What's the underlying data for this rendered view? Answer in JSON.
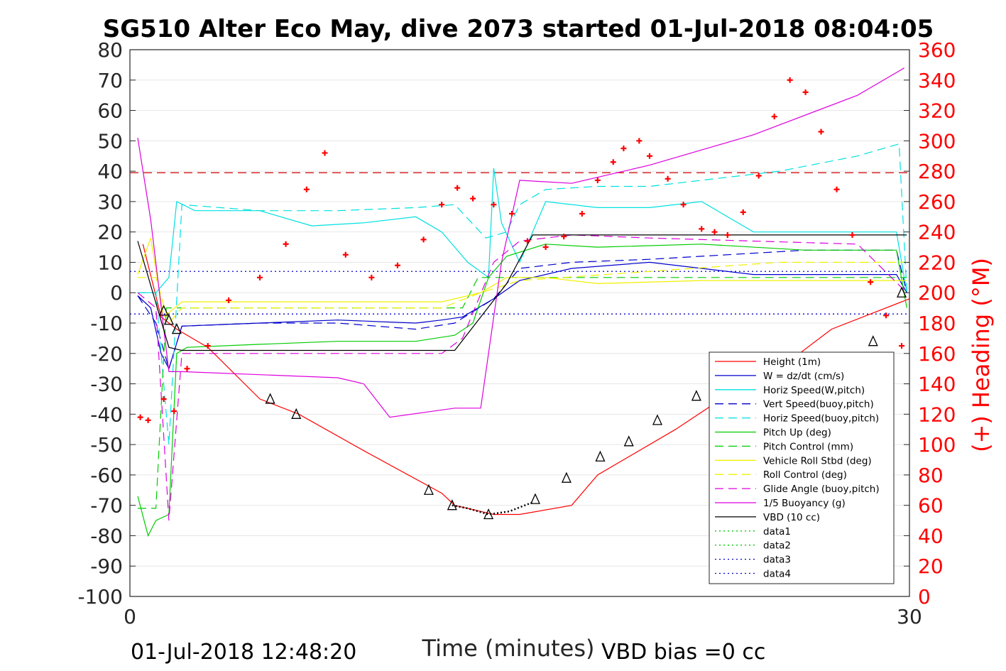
{
  "chart_data": {
    "type": "line",
    "title": "SG510 Alter Eco May, dive 2073 started 01-Jul-2018 08:04:05",
    "xlabel": "Time (minutes)",
    "ylabel_right": "(+) Heading (°M)",
    "footer_left": "01-Jul-2018 12:48:20",
    "footer_right": "VBD bias =0 cc",
    "xlim": [
      0,
      30
    ],
    "ylim": [
      -100,
      80
    ],
    "ylim_right": [
      0,
      360
    ],
    "x_ticks": [
      "0",
      "30"
    ],
    "y_ticks": [
      "80",
      "70",
      "60",
      "50",
      "40",
      "30",
      "20",
      "10",
      "0",
      "-10",
      "-20",
      "-30",
      "-40",
      "-50",
      "-60",
      "-70",
      "-80",
      "-90",
      "-100"
    ],
    "y_ticks_right": [
      "360",
      "340",
      "320",
      "300",
      "280",
      "260",
      "240",
      "220",
      "200",
      "180",
      "160",
      "140",
      "120",
      "100",
      "80",
      "60",
      "40",
      "20",
      "0"
    ],
    "grid": true,
    "legend_position": "bottom-right",
    "legend": [
      {
        "name": "Height (1m)",
        "color": "#ff0000",
        "style": "solid"
      },
      {
        "name": "W = dz/dt (cm/s)",
        "color": "#0000cc",
        "style": "solid"
      },
      {
        "name": "Horiz Speed(W,pitch)",
        "color": "#00e0e0",
        "style": "solid"
      },
      {
        "name": "Vert Speed(buoy,pitch)",
        "color": "#0000cc",
        "style": "dashed"
      },
      {
        "name": "Horiz Speed(buoy,pitch)",
        "color": "#00e0e0",
        "style": "dashed"
      },
      {
        "name": "Pitch Up (deg)",
        "color": "#00cc00",
        "style": "solid"
      },
      {
        "name": "Pitch Control (mm)",
        "color": "#00cc00",
        "style": "dashed"
      },
      {
        "name": "Vehicle Roll Stbd (deg)",
        "color": "#f0f000",
        "style": "solid"
      },
      {
        "name": "Roll Control (deg)",
        "color": "#f0f000",
        "style": "dashed"
      },
      {
        "name": "Glide Angle (buoy,pitch)",
        "color": "#dd00dd",
        "style": "dashed"
      },
      {
        "name": "1/5 Buoyancy (g)",
        "color": "#dd00dd",
        "style": "solid"
      },
      {
        "name": "VBD (10 cc)",
        "color": "#000000",
        "style": "solid"
      },
      {
        "name": "data1",
        "color": "#00cc00",
        "style": "dotted"
      },
      {
        "name": "data2",
        "color": "#00cc00",
        "style": "dotted"
      },
      {
        "name": "data3",
        "color": "#0000cc",
        "style": "dotted"
      },
      {
        "name": "data4",
        "color": "#0000cc",
        "style": "dotted"
      }
    ],
    "series": [
      {
        "name": "Height (1m)",
        "x": [
          0.5,
          1.2,
          1.8,
          3,
          5,
          6.5,
          9,
          12,
          12.5,
          14,
          15,
          17,
          18,
          21,
          24,
          25,
          27,
          30
        ],
        "y": [
          16,
          -8,
          -12,
          -18,
          -35,
          -40,
          -52,
          -66,
          -70,
          -73,
          -73,
          -70,
          -60,
          -45,
          -28,
          -25,
          -12,
          -2
        ]
      },
      {
        "name": "W = dz/dt (cm/s)",
        "x": [
          0.3,
          0.8,
          1.2,
          1.5,
          2,
          5,
          8,
          11,
          12,
          12.8,
          14,
          15,
          17,
          20,
          24,
          27,
          29.5,
          29.9
        ],
        "y": [
          -1,
          -5,
          -20,
          -25,
          -11,
          -10,
          -9,
          -10,
          -9,
          -8,
          -2,
          4,
          8,
          10,
          6,
          6,
          6,
          0
        ]
      },
      {
        "name": "Horiz Speed(W,pitch)",
        "x": [
          0.3,
          1,
          1.5,
          1.8,
          2.5,
          5,
          7,
          9,
          11,
          12,
          13,
          13.8,
          14,
          14.3,
          15,
          16,
          18,
          20,
          22,
          24,
          27,
          29.5,
          29.9
        ],
        "y": [
          0,
          0,
          5,
          30,
          27,
          27,
          22,
          23,
          25,
          20,
          10,
          5,
          41,
          23,
          10,
          30,
          28,
          28,
          30,
          20,
          20,
          20,
          0
        ]
      },
      {
        "name": "Vert Speed(buoy,pitch)",
        "x": [
          0.3,
          1,
          1.5,
          2,
          5,
          8,
          11,
          12.5,
          14,
          15,
          17,
          20,
          22,
          26,
          29.5,
          29.9
        ],
        "y": [
          -1,
          -10,
          -25,
          -11,
          -10,
          -10,
          -12,
          -10,
          -2,
          8,
          10,
          11,
          12,
          14,
          14,
          0
        ]
      },
      {
        "name": "Horiz Speed(buoy,pitch)",
        "x": [
          0.3,
          1,
          1.5,
          2,
          5,
          8,
          11,
          12.5,
          13.7,
          14.5,
          15,
          16,
          18,
          20,
          22,
          25,
          28,
          29.6,
          29.9
        ],
        "y": [
          0,
          0,
          -50,
          29,
          27,
          27,
          28,
          29,
          18,
          20,
          29,
          34,
          35,
          35,
          37,
          40,
          45,
          49,
          0
        ]
      },
      {
        "name": "Pitch Up (deg)",
        "x": [
          0.3,
          0.7,
          1,
          1.5,
          1.8,
          2.2,
          5,
          8,
          11,
          12.5,
          13.2,
          13.8,
          14.5,
          16,
          18,
          22,
          26,
          29.5,
          29.9
        ],
        "y": [
          -67,
          -80,
          -75,
          -73,
          -20,
          -18,
          -17,
          -16,
          -16,
          -14,
          -10,
          5,
          12,
          16,
          15,
          16,
          14,
          14,
          -5
        ]
      },
      {
        "name": "Pitch Control (mm)",
        "x": [
          0.3,
          1,
          1.4,
          1.8,
          12.8,
          13.4,
          29.9
        ],
        "y": [
          -71,
          -71,
          -5,
          -5,
          -5,
          5,
          5
        ]
      },
      {
        "name": "Vehicle Roll Stbd (deg)",
        "x": [
          0.3,
          0.8,
          1.3,
          2,
          5,
          8,
          12,
          13.5,
          14.5,
          16,
          18,
          22,
          25,
          29.9
        ],
        "y": [
          6,
          18,
          -8,
          -3,
          -3,
          -3,
          -3,
          0,
          5,
          5,
          3,
          4,
          4,
          4
        ]
      },
      {
        "name": "Roll Control (deg)",
        "x": [
          0.3,
          1,
          1.5,
          2,
          12,
          13.5,
          15,
          25,
          29.9
        ],
        "y": [
          5,
          5,
          -10,
          -5,
          -5,
          0,
          4,
          10,
          10
        ]
      },
      {
        "name": "Glide Angle (buoy,pitch)",
        "x": [
          0.3,
          1,
          1.5,
          2,
          5,
          8,
          12,
          12.8,
          14,
          15,
          17,
          20,
          24,
          28,
          29.9
        ],
        "y": [
          0,
          -5,
          -75,
          -20,
          -20,
          -20,
          -20,
          -15,
          10,
          17,
          19,
          18,
          17,
          16,
          0
        ]
      },
      {
        "name": "1/5 Buoyancy (g)",
        "x": [
          0.3,
          0.8,
          1.5,
          2,
          5,
          8,
          9,
          10,
          12.5,
          13.5,
          14.3,
          15,
          17,
          20,
          24,
          28,
          29.8
        ],
        "y": [
          51,
          24,
          -26,
          -26,
          -27,
          -28,
          -30,
          -41,
          -38,
          -38,
          10,
          37,
          36,
          42,
          52,
          65,
          74
        ]
      },
      {
        "name": "VBD (10 cc)",
        "x": [
          0.3,
          1.5,
          2,
          12.5,
          14.5,
          15.5,
          29.9
        ],
        "y": [
          17,
          -18,
          -19,
          -19,
          3,
          19,
          19
        ]
      }
    ],
    "heading_points": {
      "axis": "right",
      "marker": "+",
      "color": "#ff0000",
      "x": [
        0.4,
        0.7,
        1.3,
        1.7,
        2.2,
        3,
        3.8,
        5,
        6,
        6.8,
        7.5,
        8.3,
        9.3,
        10.3,
        11.3,
        12,
        12.6,
        13.2,
        14,
        14.7,
        15.3,
        16,
        16.7,
        17.4,
        18,
        18.6,
        19,
        19.6,
        20,
        20.7,
        21.3,
        22,
        22.5,
        23,
        23.6,
        24.2,
        24.8,
        25.4,
        26,
        26.6,
        27.2,
        27.8,
        28.5,
        29.1,
        29.7
      ],
      "y": [
        118,
        116,
        130,
        122,
        150,
        165,
        195,
        210,
        232,
        268,
        292,
        225,
        210,
        218,
        235,
        258,
        269,
        262,
        258,
        252,
        234,
        230,
        237,
        252,
        274,
        286,
        295,
        300,
        290,
        275,
        258,
        242,
        240,
        238,
        253,
        277,
        316,
        340,
        332,
        306,
        268,
        238,
        207,
        185,
        165
      ]
    },
    "reference_lines": [
      {
        "axis": "right",
        "y": 279,
        "color": "#cc0000",
        "style": "dashed"
      },
      {
        "axis": "left",
        "y": 7,
        "color": "#0000cc",
        "style": "dotted"
      },
      {
        "axis": "left",
        "y": -7,
        "color": "#0000cc",
        "style": "dotted"
      }
    ],
    "triangle_markers": {
      "x": [
        1.3,
        1.5,
        1.8,
        5.4,
        6.4,
        11.5,
        12.4,
        13.8,
        15.6,
        16.8,
        18.1,
        19.2,
        20.3,
        21.8,
        23.4,
        28.6,
        29.7
      ],
      "y": [
        -6,
        -9,
        -12,
        -35,
        -40,
        -65,
        -70,
        -73,
        -68,
        -61,
        -54,
        -49,
        -42,
        -34,
        -29,
        -16,
        0
      ]
    }
  }
}
